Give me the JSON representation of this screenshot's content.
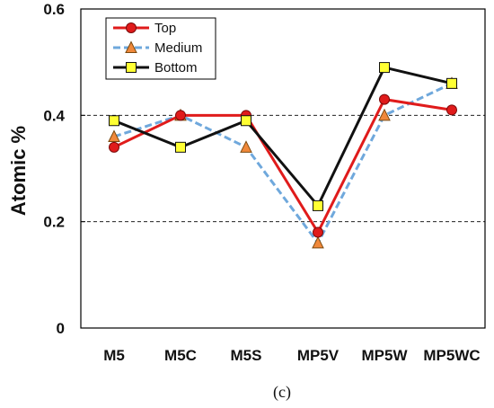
{
  "chart_data": {
    "type": "line",
    "categories": [
      "M5",
      "M5C",
      "M5S",
      "MP5V",
      "MP5W",
      "MP5WC"
    ],
    "series": [
      {
        "name": "Top",
        "values": [
          0.34,
          0.4,
          0.4,
          0.18,
          0.43,
          0.41
        ],
        "color": "#e01b1b",
        "marker": "circle",
        "dash": "solid",
        "marker_fill": "#e01b1b"
      },
      {
        "name": "Medium",
        "values": [
          0.36,
          0.4,
          0.34,
          0.16,
          0.4,
          0.46
        ],
        "color": "#6fa8dc",
        "marker": "triangle",
        "dash": "dashed",
        "marker_fill": "#f0883a"
      },
      {
        "name": "Bottom",
        "values": [
          0.39,
          0.34,
          0.39,
          0.23,
          0.49,
          0.46
        ],
        "color": "#111111",
        "marker": "square",
        "dash": "solid",
        "marker_fill": "#ffff33"
      }
    ],
    "ylabel": "Atomic %",
    "xlabel": "",
    "ylim": [
      0,
      0.6
    ],
    "yticks": [
      "0",
      "0.2",
      "0.4",
      "0.6"
    ],
    "gridlines": [
      0.2,
      0.4
    ],
    "grid": "dashed horizontal at 0.2 and 0.4",
    "legend_position": "top-left",
    "caption": "(c)"
  }
}
